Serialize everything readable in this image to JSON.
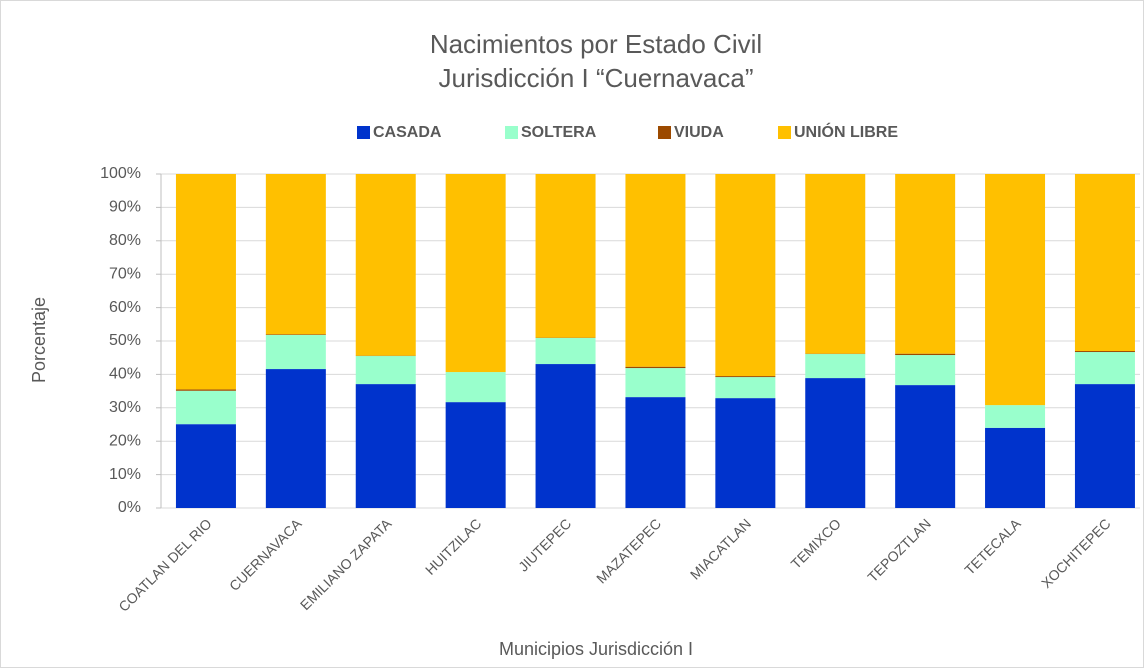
{
  "chart_data": {
    "type": "stacked_bar",
    "title": "Nacimientos por Estado Civil",
    "subtitle": "Jurisdicción I  “Cuernavaca”",
    "x_label": "Municipios Jurisdicción I",
    "y_label": "Porcentaje",
    "categories": [
      "COATLAN DEL RIO",
      "CUERNAVACA",
      "EMILIANO ZAPATA",
      "HUITZILAC",
      "JIUTEPEC",
      "MAZATEPEC",
      "MIACATLAN",
      "TEMIXCO",
      "TEPOZTLAN",
      "TETECALA",
      "XOCHITEPEC"
    ],
    "series": [
      {
        "name": "CASADA",
        "color": "#0033cc",
        "values": [
          25.1,
          41.6,
          37.1,
          31.7,
          43.1,
          33.2,
          32.9,
          38.9,
          36.8,
          24,
          37.1
        ]
      },
      {
        "name": "SOLTERA",
        "color": "#99ffcc",
        "values": [
          10,
          10.2,
          8.4,
          9,
          7.8,
          8.7,
          6.3,
          7.2,
          9,
          6.8,
          9.6
        ]
      },
      {
        "name": "VIUDA",
        "color": "#9c4a00",
        "values": [
          0.4,
          0.2,
          0.1,
          0,
          0.1,
          0.4,
          0.3,
          0.1,
          0.4,
          0,
          0.3
        ]
      },
      {
        "name": "UNIÓN LIBRE",
        "color": "#ffc000",
        "values": [
          64.5,
          48,
          54.4,
          59.3,
          49,
          57.7,
          60.5,
          53.8,
          53.8,
          69.2,
          53
        ]
      }
    ],
    "ylim": [
      0,
      100
    ],
    "yticks": [
      {
        "value": 0,
        "label": "0%"
      },
      {
        "value": 10,
        "label": "10%"
      },
      {
        "value": 20,
        "label": "20%"
      },
      {
        "value": 30,
        "label": "30%"
      },
      {
        "value": 40,
        "label": "40%"
      },
      {
        "value": 50,
        "label": "50%"
      },
      {
        "value": 60,
        "label": "60%"
      },
      {
        "value": 70,
        "label": "70%"
      },
      {
        "value": 80,
        "label": "80%"
      },
      {
        "value": 90,
        "label": "90%"
      },
      {
        "value": 100,
        "label": "100%"
      }
    ],
    "grid": true,
    "legend": "top"
  }
}
